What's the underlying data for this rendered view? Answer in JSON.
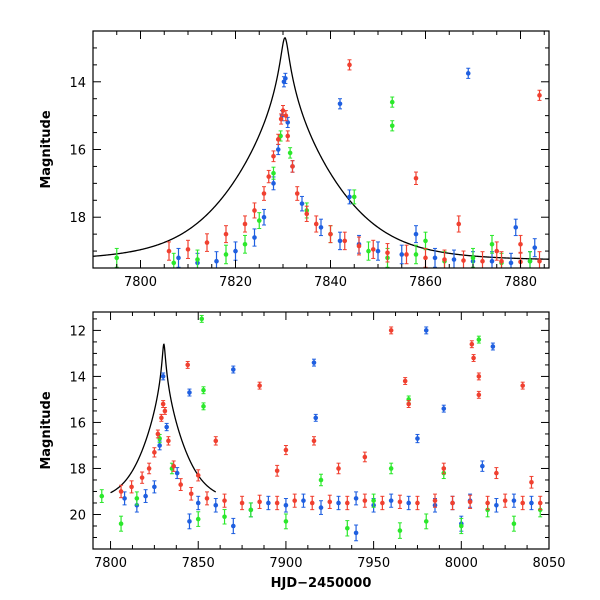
{
  "chart_data": [
    {
      "type": "scatter",
      "title": "",
      "xlabel": "",
      "ylabel": "Magnitude",
      "xlim": [
        7790,
        7886
      ],
      "ylim": [
        19.5,
        12.5
      ],
      "y_inverted": true,
      "xticks": [
        7800,
        7820,
        7840,
        7860,
        7880
      ],
      "yticks": [
        14,
        16,
        18
      ],
      "grid": false,
      "legend": "none",
      "model": {
        "name": "",
        "color": "#000000",
        "peak_x": 7830.4,
        "peak_mag": 12.7,
        "baseline_mag": 19.28,
        "tE": 8.5,
        "u0": 0.08,
        "x_range": [
          7790,
          7886
        ]
      },
      "series": [
        {
          "color": "#1f5fe0",
          "points": [
            [
              7808,
              19.2
            ],
            [
              7812,
              19.35
            ],
            [
              7816,
              19.3
            ],
            [
              7820,
              19.0
            ],
            [
              7824,
              18.6
            ],
            [
              7826,
              18.0
            ],
            [
              7828,
              17.0
            ],
            [
              7829,
              16.0
            ],
            [
              7829.8,
              15.0
            ],
            [
              7830.2,
              14.0
            ],
            [
              7830.5,
              13.9
            ],
            [
              7831,
              15.2
            ],
            [
              7832,
              16.5
            ],
            [
              7834,
              17.6
            ],
            [
              7838,
              18.3
            ],
            [
              7842,
              18.7
            ],
            [
              7844,
              17.4
            ],
            [
              7846,
              18.8
            ],
            [
              7850,
              19.0
            ],
            [
              7855,
              19.1
            ],
            [
              7858,
              18.5
            ],
            [
              7862,
              19.2
            ],
            [
              7866,
              19.25
            ],
            [
              7870,
              19.3
            ],
            [
              7874,
              19.3
            ],
            [
              7878,
              19.35
            ],
            [
              7882,
              19.3
            ],
            [
              7842,
              14.65
            ],
            [
              7869,
              13.75
            ],
            [
              7879,
              18.3
            ],
            [
              7883,
              18.9
            ]
          ]
        },
        {
          "color": "#2be82b",
          "points": [
            [
              7795,
              19.2
            ],
            [
              7807,
              19.35
            ],
            [
              7812,
              19.25
            ],
            [
              7818,
              19.1
            ],
            [
              7822,
              18.8
            ],
            [
              7825,
              18.1
            ],
            [
              7828,
              16.7
            ],
            [
              7829.5,
              15.6
            ],
            [
              7831.5,
              16.1
            ],
            [
              7835,
              17.8
            ],
            [
              7840,
              18.5
            ],
            [
              7845,
              17.4
            ],
            [
              7848,
              19.0
            ],
            [
              7852,
              19.2
            ],
            [
              7853,
              14.6
            ],
            [
              7853,
              15.3
            ],
            [
              7858,
              19.1
            ],
            [
              7864,
              19.3
            ],
            [
              7870,
              19.2
            ],
            [
              7876,
              19.35
            ],
            [
              7882,
              19.3
            ],
            [
              7860,
              18.7
            ],
            [
              7874,
              18.8
            ]
          ]
        },
        {
          "color": "#f04030",
          "points": [
            [
              7806,
              19.0
            ],
            [
              7810,
              18.95
            ],
            [
              7814,
              18.75
            ],
            [
              7818,
              18.5
            ],
            [
              7822,
              18.2
            ],
            [
              7824,
              17.8
            ],
            [
              7826,
              17.3
            ],
            [
              7827,
              16.8
            ],
            [
              7828,
              16.2
            ],
            [
              7829,
              15.7
            ],
            [
              7829.6,
              15.1
            ],
            [
              7830,
              14.85
            ],
            [
              7830.6,
              15.0
            ],
            [
              7831,
              15.6
            ],
            [
              7832,
              16.5
            ],
            [
              7833,
              17.3
            ],
            [
              7835,
              17.9
            ],
            [
              7837,
              18.2
            ],
            [
              7840,
              18.5
            ],
            [
              7843,
              18.7
            ],
            [
              7846,
              18.85
            ],
            [
              7849,
              18.95
            ],
            [
              7852,
              19.05
            ],
            [
              7856,
              19.1
            ],
            [
              7860,
              19.2
            ],
            [
              7864,
              19.25
            ],
            [
              7868,
              19.28
            ],
            [
              7872,
              19.3
            ],
            [
              7876,
              19.3
            ],
            [
              7880,
              19.32
            ],
            [
              7884,
              19.3
            ],
            [
              7844,
              13.5
            ],
            [
              7884,
              14.4
            ],
            [
              7858,
              16.85
            ],
            [
              7867,
              18.2
            ],
            [
              7875,
              19.0
            ],
            [
              7880,
              18.8
            ]
          ]
        }
      ]
    },
    {
      "type": "scatter",
      "title": "",
      "xlabel": "HJD−2450000",
      "ylabel": "Magnitude",
      "xlim": [
        7790,
        8050
      ],
      "ylim": [
        21.5,
        11.2
      ],
      "y_inverted": true,
      "xticks": [
        7800,
        7850,
        7900,
        7950,
        8000,
        8050
      ],
      "yticks": [
        12,
        14,
        16,
        18,
        20
      ],
      "grid": false,
      "legend": "none",
      "model": {
        "name": "",
        "color": "#000000",
        "peak_x": 7830.4,
        "peak_mag": 12.6,
        "baseline_mag": 19.45,
        "tE": 8.5,
        "u0": 0.08,
        "x_range": [
          7800,
          7860
        ]
      },
      "series": [
        {
          "color": "#1f5fe0",
          "points": [
            [
              7808,
              19.3
            ],
            [
              7815,
              19.6
            ],
            [
              7820,
              19.2
            ],
            [
              7825,
              18.8
            ],
            [
              7828,
              17.0
            ],
            [
              7830,
              14.0
            ],
            [
              7832,
              16.2
            ],
            [
              7838,
              18.2
            ],
            [
              7845,
              14.7
            ],
            [
              7850,
              19.5
            ],
            [
              7860,
              19.6
            ],
            [
              7870,
              13.7
            ],
            [
              7880,
              19.8
            ],
            [
              7890,
              19.5
            ],
            [
              7900,
              19.6
            ],
            [
              7910,
              19.4
            ],
            [
              7916,
              13.4
            ],
            [
              7917,
              15.8
            ],
            [
              7920,
              19.7
            ],
            [
              7930,
              19.5
            ],
            [
              7940,
              19.3
            ],
            [
              7950,
              19.6
            ],
            [
              7960,
              19.4
            ],
            [
              7970,
              19.5
            ],
            [
              7975,
              16.7
            ],
            [
              7980,
              12.0
            ],
            [
              7985,
              19.6
            ],
            [
              7990,
              15.4
            ],
            [
              7995,
              19.5
            ],
            [
              8005,
              19.4
            ],
            [
              8012,
              17.9
            ],
            [
              8018,
              12.7
            ],
            [
              8020,
              19.6
            ],
            [
              8030,
              19.4
            ],
            [
              8040,
              19.5
            ],
            [
              7870,
              20.5
            ],
            [
              7940,
              20.8
            ],
            [
              8000,
              20.4
            ],
            [
              7845,
              20.3
            ]
          ]
        },
        {
          "color": "#2be82b",
          "points": [
            [
              7795,
              19.2
            ],
            [
              7806,
              20.4
            ],
            [
              7815,
              19.3
            ],
            [
              7828,
              16.7
            ],
            [
              7835,
              18.0
            ],
            [
              7850,
              20.2
            ],
            [
              7852,
              11.5
            ],
            [
              7853,
              14.6
            ],
            [
              7853,
              15.3
            ],
            [
              7865,
              20.1
            ],
            [
              7880,
              19.8
            ],
            [
              7900,
              20.3
            ],
            [
              7920,
              18.5
            ],
            [
              7935,
              20.6
            ],
            [
              7950,
              19.4
            ],
            [
              7965,
              20.7
            ],
            [
              7970,
              15.0
            ],
            [
              7980,
              20.3
            ],
            [
              7990,
              18.2
            ],
            [
              8000,
              20.5
            ],
            [
              8010,
              12.4
            ],
            [
              8015,
              19.8
            ],
            [
              8030,
              20.4
            ],
            [
              8045,
              19.8
            ],
            [
              7960,
              18.0
            ]
          ]
        },
        {
          "color": "#f04030",
          "points": [
            [
              7806,
              19.0
            ],
            [
              7812,
              18.8
            ],
            [
              7818,
              18.4
            ],
            [
              7822,
              18.0
            ],
            [
              7825,
              17.3
            ],
            [
              7827,
              16.5
            ],
            [
              7829,
              15.8
            ],
            [
              7830,
              15.2
            ],
            [
              7831,
              15.5
            ],
            [
              7833,
              16.8
            ],
            [
              7836,
              17.9
            ],
            [
              7840,
              18.7
            ],
            [
              7846,
              19.1
            ],
            [
              7855,
              19.3
            ],
            [
              7865,
              19.4
            ],
            [
              7875,
              19.5
            ],
            [
              7885,
              19.45
            ],
            [
              7895,
              19.5
            ],
            [
              7905,
              19.4
            ],
            [
              7915,
              19.5
            ],
            [
              7925,
              19.45
            ],
            [
              7935,
              19.5
            ],
            [
              7945,
              19.4
            ],
            [
              7955,
              19.5
            ],
            [
              7965,
              19.45
            ],
            [
              7975,
              19.5
            ],
            [
              7985,
              19.4
            ],
            [
              7995,
              19.5
            ],
            [
              8005,
              19.45
            ],
            [
              8015,
              19.5
            ],
            [
              8025,
              19.4
            ],
            [
              8035,
              19.5
            ],
            [
              8045,
              19.5
            ],
            [
              7844,
              13.5
            ],
            [
              7860,
              16.8
            ],
            [
              7885,
              14.4
            ],
            [
              7900,
              17.2
            ],
            [
              7916,
              16.8
            ],
            [
              7945,
              17.5
            ],
            [
              7960,
              12.0
            ],
            [
              7968,
              14.2
            ],
            [
              7970,
              15.2
            ],
            [
              8006,
              12.6
            ],
            [
              8007,
              13.2
            ],
            [
              8010,
              14.0
            ],
            [
              8010,
              14.8
            ],
            [
              8035,
              14.4
            ],
            [
              7850,
              18.3
            ],
            [
              7895,
              18.1
            ],
            [
              7930,
              18.0
            ],
            [
              7990,
              18.0
            ],
            [
              8020,
              18.2
            ],
            [
              8040,
              18.6
            ]
          ]
        }
      ]
    }
  ]
}
